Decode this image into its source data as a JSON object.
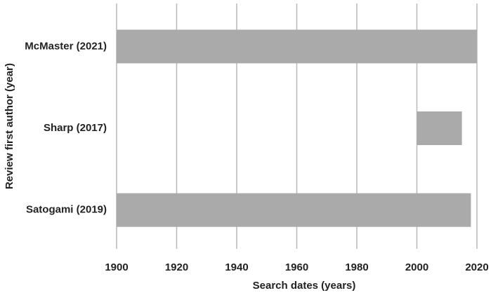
{
  "chart_data": {
    "type": "range-bar",
    "categories": [
      "McMaster (2021)",
      "Sharp (2017)",
      "Satogami (2019)"
    ],
    "start": [
      1900,
      2000,
      1900
    ],
    "end": [
      2020,
      2015,
      2018
    ],
    "color": "#aaaaaa",
    "x_label": "Search dates (years)",
    "y_label": "Review first author (year)",
    "xlim": [
      1900,
      2020
    ],
    "xticks": [
      1900,
      1920,
      1940,
      1960,
      1980,
      2000,
      2020
    ],
    "grid": true
  }
}
